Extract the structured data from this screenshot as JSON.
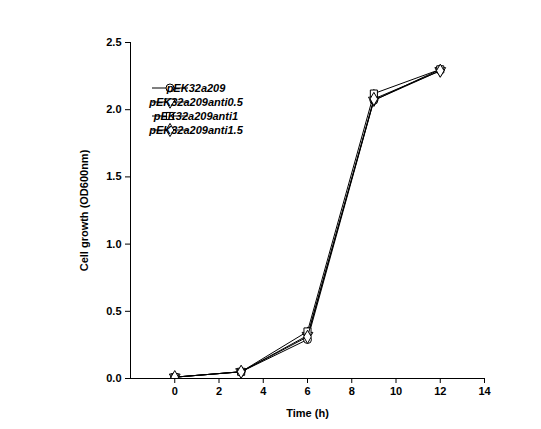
{
  "chart_data": {
    "type": "line",
    "x_label": "Time (h)",
    "y_label": "Cell growth (OD600nm)",
    "x": [
      0,
      3,
      6,
      9,
      12
    ],
    "xlim": [
      -2,
      14
    ],
    "xticks": [
      0,
      2,
      4,
      6,
      8,
      10,
      12,
      14
    ],
    "ylim": [
      0,
      2.5
    ],
    "yticks": [
      {
        "value": 0,
        "label": "0.0"
      },
      {
        "value": 0.5,
        "label": "0.5"
      },
      {
        "value": 1,
        "label": "1.0"
      },
      {
        "value": 1.5,
        "label": "1.5"
      },
      {
        "value": 2,
        "label": "2.0"
      },
      {
        "value": 2.5,
        "label": "2.5"
      }
    ],
    "grid": false,
    "legend": "upper left",
    "series": [
      {
        "name": "pEK32a209",
        "color": "#000000",
        "marker": "circle",
        "line_style": "solid",
        "values": [
          0.01,
          0.05,
          0.29,
          2.07,
          2.3
        ],
        "errors": [
          0.005,
          0.005,
          0.03,
          0.02,
          0.02
        ]
      },
      {
        "name": "pEK32a209anti0.5",
        "color": "#000000",
        "marker": "triangle-down",
        "line_style": "solid",
        "values": [
          0.01,
          0.05,
          0.32,
          2.07,
          2.29
        ],
        "errors": [
          0.005,
          0.005,
          0.03,
          0.02,
          0.02
        ]
      },
      {
        "name": "pEK32a209anti1",
        "color": "#000000",
        "marker": "square",
        "line_style": "solid",
        "values": [
          0.01,
          0.05,
          0.35,
          2.12,
          2.3
        ],
        "errors": [
          0.005,
          0.005,
          0.03,
          0.03,
          0.02
        ]
      },
      {
        "name": "pEK32a209anti1.5",
        "color": "#000000",
        "marker": "diamond",
        "line_style": "solid",
        "values": [
          0.01,
          0.05,
          0.31,
          2.08,
          2.29
        ],
        "errors": [
          0.005,
          0.005,
          0.03,
          0.02,
          0.02
        ]
      }
    ]
  }
}
